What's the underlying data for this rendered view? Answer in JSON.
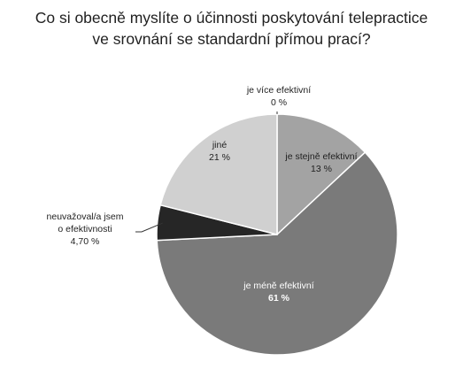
{
  "chart_data": {
    "type": "pie",
    "title": [
      "Co si obecně myslíte o účinnosti poskytování telepractice",
      "ve srovnání se standardní přímou prací?"
    ],
    "slices": [
      {
        "label": "je více efektivní",
        "value": 0,
        "value_text": "0 %",
        "color": "#c8c8c8"
      },
      {
        "label": "je stejně efektivní",
        "value": 13,
        "value_text": "13 %",
        "color": "#a3a3a3"
      },
      {
        "label": "je méně efektivní",
        "value": 61,
        "value_text": "61 %",
        "color": "#7a7a7a"
      },
      {
        "label": "neuvažoval/a jsem o efektivnosti",
        "label_lines": [
          "neuvažoval/a jsem",
          "o efektivnosti"
        ],
        "value": 4.7,
        "value_text": "4,70 %",
        "color": "#262626"
      },
      {
        "label": "jiné",
        "value": 21,
        "value_text": "21 %",
        "color": "#d0d0d0"
      }
    ]
  }
}
